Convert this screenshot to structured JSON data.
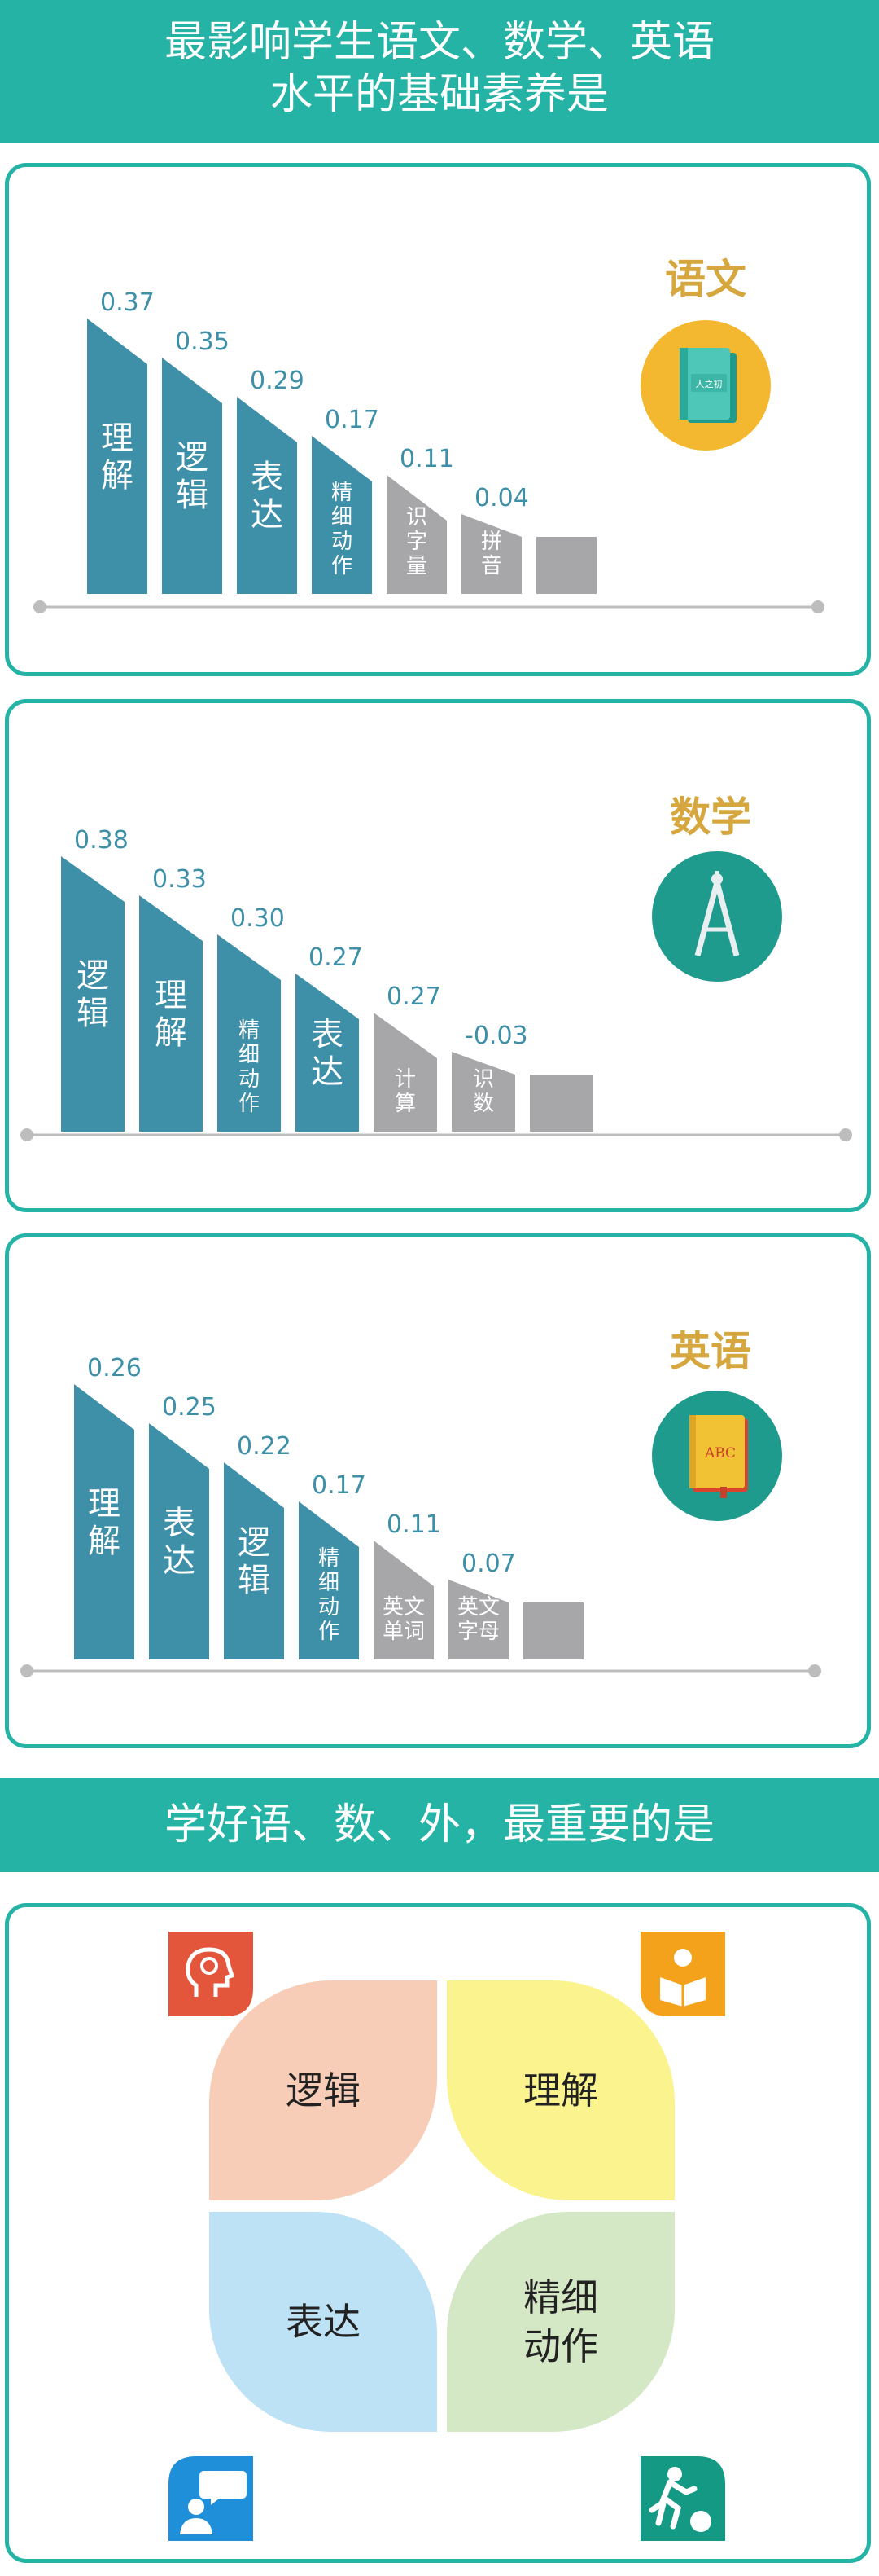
{
  "header": {
    "title_line1": "最影响学生语文、数学、英语",
    "title_line2": "水平的基础素养是"
  },
  "section2": {
    "title": "学好语、数、外，最重要的是"
  },
  "colors": {
    "teal": "#25b3a6",
    "bar_blue": "#3e8fa8",
    "bar_gray": "#a7a7aa",
    "gold": "#d6a73e"
  },
  "chart_data": [
    {
      "type": "bar",
      "subject": "语文",
      "categories": [
        "理解",
        "逻辑",
        "表达",
        "精细动作",
        "识字量",
        "拼音",
        ""
      ],
      "values": [
        0.37,
        0.35,
        0.29,
        0.17,
        0.11,
        0.04,
        null
      ],
      "labels": [
        "0.37",
        "0.35",
        "0.29",
        "0.17",
        "0.11",
        "0.04",
        ""
      ],
      "icon": "book-icon",
      "icon_text": "人之初"
    },
    {
      "type": "bar",
      "subject": "数学",
      "categories": [
        "逻辑",
        "理解",
        "精细动作",
        "表达",
        "计算",
        "识数",
        ""
      ],
      "values": [
        0.38,
        0.33,
        0.3,
        0.27,
        0.27,
        -0.03,
        null
      ],
      "labels": [
        "0.38",
        "0.33",
        "0.30",
        "0.27",
        "0.27",
        "-0.03",
        ""
      ],
      "icon": "compass-icon",
      "icon_text": ""
    },
    {
      "type": "bar",
      "subject": "英语",
      "categories": [
        "理解",
        "表达",
        "逻辑",
        "精细动作",
        "英文单词",
        "英文字母",
        ""
      ],
      "values": [
        0.26,
        0.25,
        0.22,
        0.17,
        0.11,
        0.07,
        null
      ],
      "labels": [
        "0.26",
        "0.25",
        "0.22",
        "0.17",
        "0.11",
        "0.07",
        ""
      ],
      "icon": "abc-book-icon",
      "icon_text": "ABC"
    }
  ],
  "skills": [
    {
      "label": "逻辑",
      "icon": "head-brain-icon",
      "color": "#f8cdb8",
      "icon_color": "#e4563c"
    },
    {
      "label": "理解",
      "icon": "reading-icon",
      "color": "#fbf38e",
      "icon_color": "#f4a21b"
    },
    {
      "label": "表达",
      "icon": "speaking-icon",
      "color": "#bde1f5",
      "icon_color": "#1e8fd8"
    },
    {
      "label": "精细\n动作",
      "icon": "ball-play-icon",
      "color": "#d5e8c6",
      "icon_color": "#149a84"
    }
  ]
}
